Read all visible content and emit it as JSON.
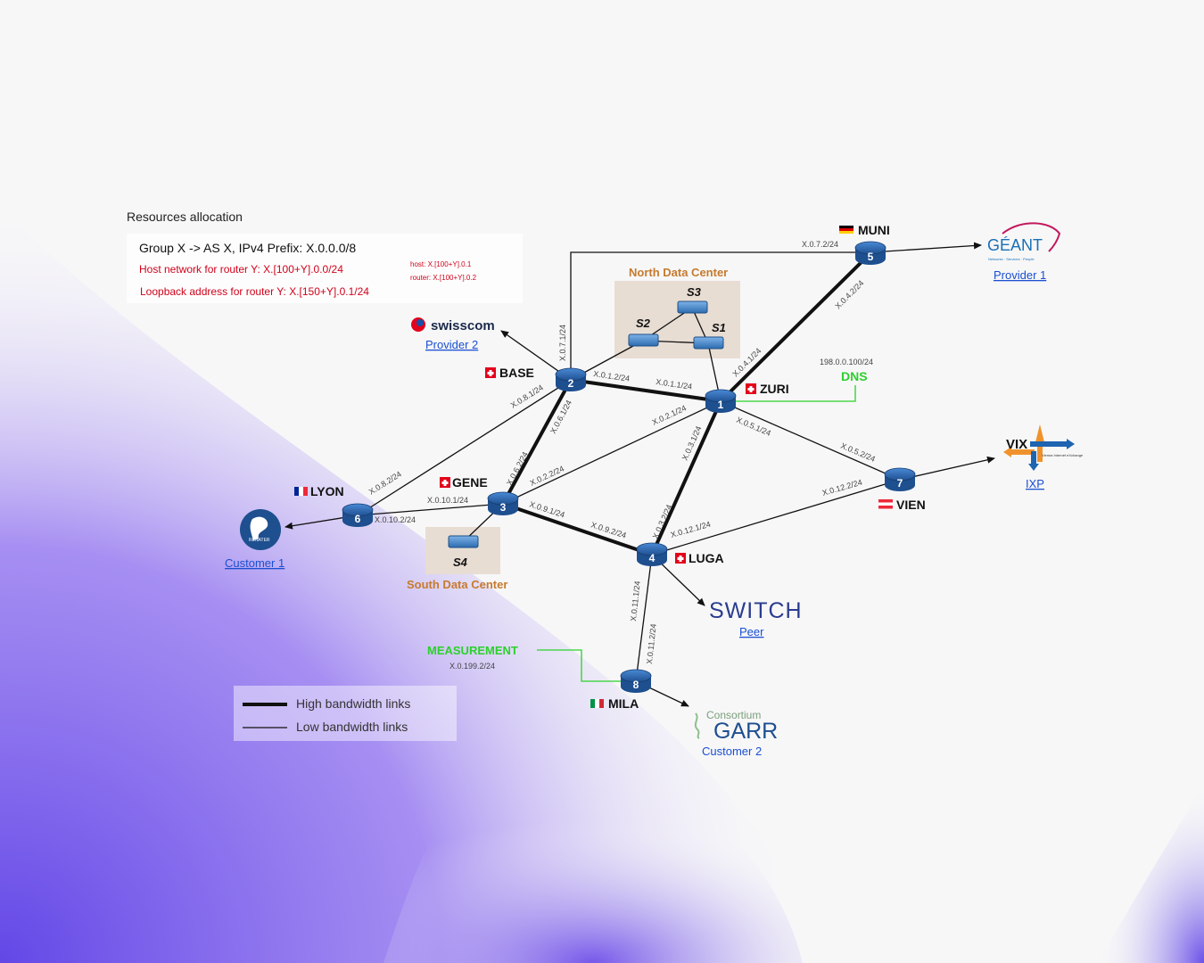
{
  "colors": {
    "router": "#2f6fb5",
    "dc_box": "#e8ddd3",
    "dc_text": "#c77a2e",
    "red_text": "#d0021b",
    "link_text": "#1a4fd1",
    "dns_green": "#2bd12b",
    "gradient_purple": "#7b55e8"
  },
  "resources": {
    "title": "Resources allocation",
    "group_line": "Group X -> AS X, IPv4 Prefix: X.0.0.0/8",
    "host_line": "Host network for router Y: X.[100+Y].0.0/24",
    "loopback_line": "Loopback address for router Y: X.[150+Y].0.1/24",
    "host_note": "host: X.[100+Y].0.1",
    "router_note": "router: X.[100+Y].0.2"
  },
  "datacenters": {
    "north": "North Data Center",
    "south": "South Data Center"
  },
  "switches": [
    "S1",
    "S2",
    "S3",
    "S4"
  ],
  "routers": [
    {
      "id": "1",
      "name": "ZURI"
    },
    {
      "id": "2",
      "name": "BASE"
    },
    {
      "id": "3",
      "name": "GENE"
    },
    {
      "id": "4",
      "name": "LUGA"
    },
    {
      "id": "5",
      "name": "MUNI"
    },
    {
      "id": "6",
      "name": "LYON"
    },
    {
      "id": "7",
      "name": "VIEN"
    },
    {
      "id": "8",
      "name": "MILA"
    }
  ],
  "link_labels": {
    "base_muni": "X.0.7.2/24",
    "base_up": "X.0.7.1/24",
    "muni_zuri": "X.0.4.2/24",
    "zuri_muni": "X.0.4.1/24",
    "base_zuri_a": "X.0.1.2/24",
    "base_zuri_b": "X.0.1.1/24",
    "base_lyon_a": "X.0.8.1/24",
    "base_lyon_b": "X.0.8.2/24",
    "base_gene_a": "X.0.6.1/24",
    "base_gene_b": "X.0.6.2/24",
    "zuri_gene_a": "X.0.2.1/24",
    "zuri_gene_b": "X.0.2.2/24",
    "zuri_luga_a": "X.0.3.1/24",
    "zuri_luga_b": "X.0.3.2/24",
    "zuri_vien_a": "X.0.5.1/24",
    "zuri_vien_b": "X.0.5.2/24",
    "gene_lyon_a": "X.0.10.1/24",
    "gene_lyon_b": "X.0.10.2/24",
    "gene_luga_a": "X.0.9.1/24",
    "gene_luga_b": "X.0.9.2/24",
    "luga_vien_a": "X.0.12.1/24",
    "luga_vien_b": "X.0.12.2/24",
    "luga_mila_a": "X.0.11.1/24",
    "luga_mila_b": "X.0.11.2/24"
  },
  "dns": {
    "label": "DNS",
    "ip": "198.0.0.100/24"
  },
  "measurement": {
    "label": "MEASUREMENT",
    "ip": "X.0.199.2/24"
  },
  "externals": {
    "geant_logo": "GÉANT",
    "geant_tagline": "Networks · Services · People",
    "geant_role": "Provider 1",
    "swisscom_logo": "swisscom",
    "swisscom_role": "Provider 2",
    "vix_logo": "VIX",
    "vix_tagline": "Vienna Internet eXchange",
    "vix_role": "IXP",
    "switch_logo": "SWITCH",
    "switch_role": "Peer",
    "garr_logo_a": "Consortium",
    "garr_logo_b": "GARR",
    "garr_role": "Customer 2",
    "renater_logo": "RENATER",
    "renater_role": "Customer 1"
  },
  "legend": {
    "high": "High bandwidth links",
    "low": "Low bandwidth links"
  }
}
